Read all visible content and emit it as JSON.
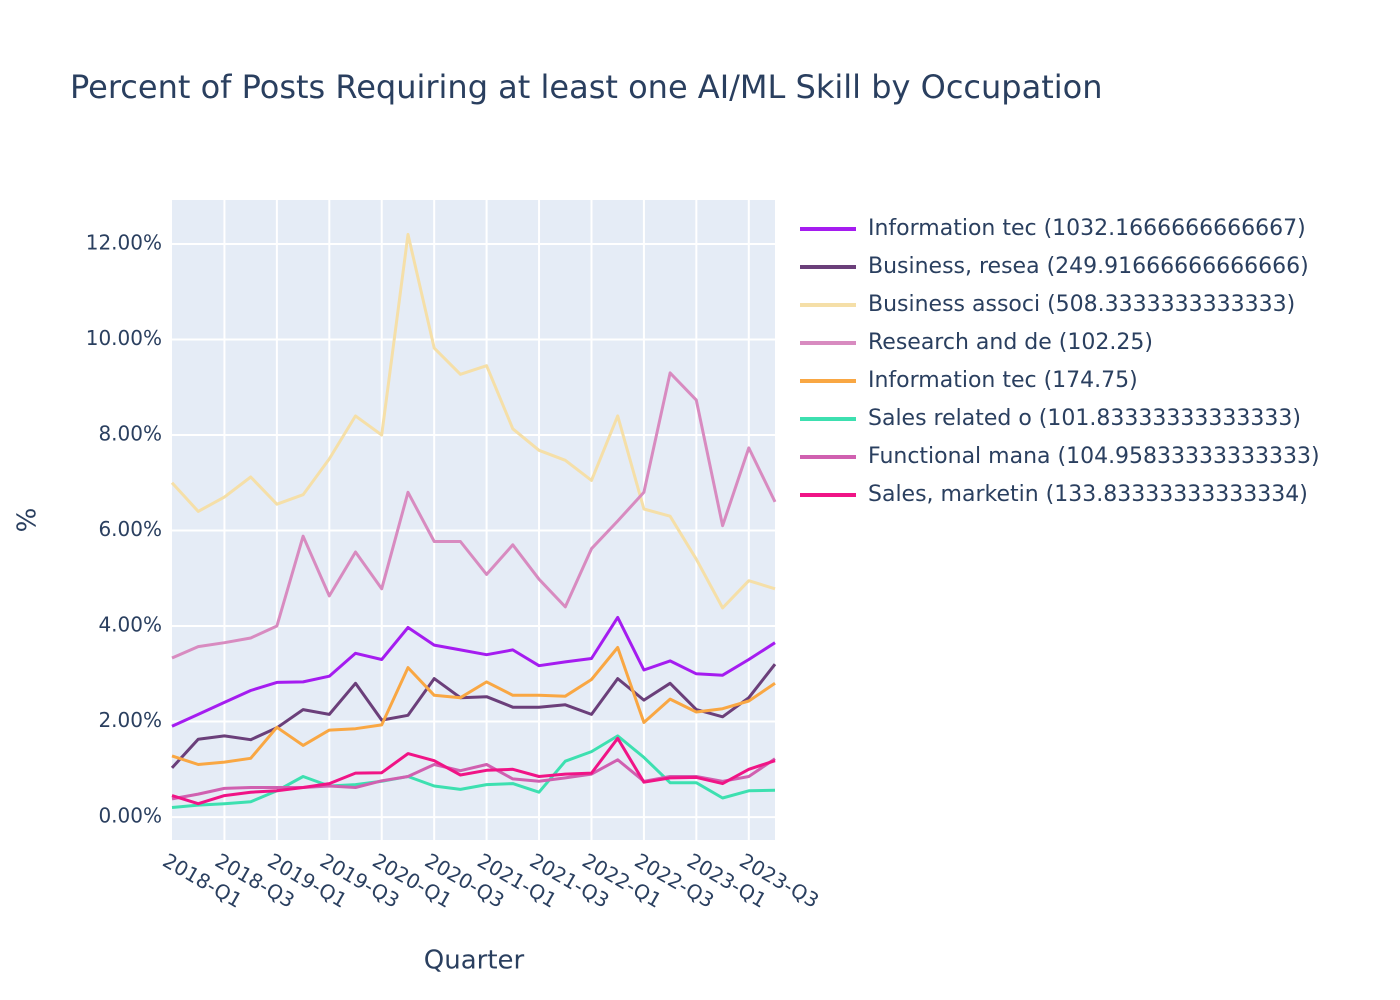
{
  "chart_data": {
    "type": "line",
    "title": "Percent of Posts Requiring at least one AI/ML Skill by Occupation",
    "x_label": "Quarter",
    "y_label": "%",
    "categories": [
      "2018-Q1",
      null,
      "2018-Q3",
      null,
      "2019-Q1",
      null,
      "2019-Q3",
      null,
      "2020-Q1",
      null,
      "2020-Q3",
      null,
      "2021-Q1",
      null,
      "2021-Q3",
      null,
      "2022-Q1",
      null,
      "2022-Q3",
      null,
      "2023-Q1",
      null,
      "2023-Q3",
      null
    ],
    "ylim": [
      -0.48,
      12.92
    ],
    "yticks": [
      {
        "value": 0,
        "label": "0.00%"
      },
      {
        "value": 2,
        "label": "2.00%"
      },
      {
        "value": 4,
        "label": "4.00%"
      },
      {
        "value": 6,
        "label": "6.00%"
      },
      {
        "value": 8,
        "label": "8.00%"
      },
      {
        "value": 10,
        "label": "10.00%"
      },
      {
        "value": 12,
        "label": "12.00%"
      }
    ],
    "grid": true,
    "legend": "right",
    "series": [
      {
        "name": "Information tec (1032.1666666666667)",
        "color": "#a51cf0",
        "values": [
          1.9,
          2.15,
          2.4,
          2.65,
          2.82,
          2.83,
          2.95,
          3.43,
          3.3,
          3.97,
          3.6,
          3.5,
          3.4,
          3.5,
          3.17,
          3.25,
          3.32,
          4.18,
          3.08,
          3.27,
          3.0,
          2.97,
          3.3,
          3.65
        ]
      },
      {
        "name": "Business, resea (249.91666666666666)",
        "color": "#6b3f7a",
        "values": [
          1.03,
          1.63,
          1.7,
          1.62,
          1.87,
          2.25,
          2.15,
          2.8,
          2.03,
          2.13,
          2.9,
          2.5,
          2.52,
          2.3,
          2.3,
          2.35,
          2.15,
          2.9,
          2.45,
          2.8,
          2.25,
          2.1,
          2.5,
          3.2
        ]
      },
      {
        "name": "Business associ (508.3333333333333)",
        "color": "#f5dfa8",
        "values": [
          7.0,
          6.4,
          6.7,
          7.12,
          6.55,
          6.75,
          7.5,
          8.4,
          8.0,
          12.2,
          9.82,
          9.27,
          9.45,
          8.13,
          7.68,
          7.47,
          7.05,
          8.4,
          6.45,
          6.3,
          5.4,
          4.38,
          4.95,
          4.78
        ]
      },
      {
        "name": "Research and de (102.25)",
        "color": "#d88bc0",
        "values": [
          3.33,
          3.57,
          3.65,
          3.75,
          4.0,
          5.88,
          4.63,
          5.55,
          4.78,
          6.8,
          5.77,
          5.77,
          5.08,
          5.7,
          4.98,
          4.4,
          5.62,
          6.2,
          6.8,
          9.3,
          8.73,
          6.1,
          7.73,
          6.6
        ]
      },
      {
        "name": "Information tec (174.75)",
        "color": "#f9a743",
        "values": [
          1.28,
          1.1,
          1.15,
          1.23,
          1.88,
          1.5,
          1.82,
          1.85,
          1.93,
          3.13,
          2.55,
          2.5,
          2.83,
          2.55,
          2.55,
          2.53,
          2.88,
          3.55,
          1.98,
          2.47,
          2.2,
          2.27,
          2.43,
          2.8
        ]
      },
      {
        "name": "Sales related o (101.83333333333333)",
        "color": "#3de0b0",
        "values": [
          0.2,
          0.25,
          0.28,
          0.32,
          0.55,
          0.85,
          0.65,
          0.68,
          0.75,
          0.85,
          0.65,
          0.58,
          0.68,
          0.7,
          0.52,
          1.17,
          1.37,
          1.7,
          1.25,
          0.72,
          0.72,
          0.4,
          0.55,
          0.56
        ]
      },
      {
        "name": "Functional mana (104.95833333333333)",
        "color": "#d060b0",
        "values": [
          0.38,
          0.48,
          0.6,
          0.62,
          0.62,
          0.62,
          0.65,
          0.62,
          0.76,
          0.85,
          1.1,
          0.97,
          1.1,
          0.8,
          0.75,
          0.82,
          0.9,
          1.2,
          0.75,
          0.85,
          0.85,
          0.75,
          0.85,
          1.22
        ]
      },
      {
        "name": "Sales, marketin (133.83333333333334)",
        "color": "#f01486",
        "values": [
          0.45,
          0.28,
          0.45,
          0.52,
          0.55,
          0.62,
          0.7,
          0.92,
          0.93,
          1.33,
          1.18,
          0.88,
          0.98,
          1.0,
          0.85,
          0.9,
          0.92,
          1.65,
          0.73,
          0.82,
          0.83,
          0.7,
          1.0,
          1.18
        ]
      }
    ]
  }
}
